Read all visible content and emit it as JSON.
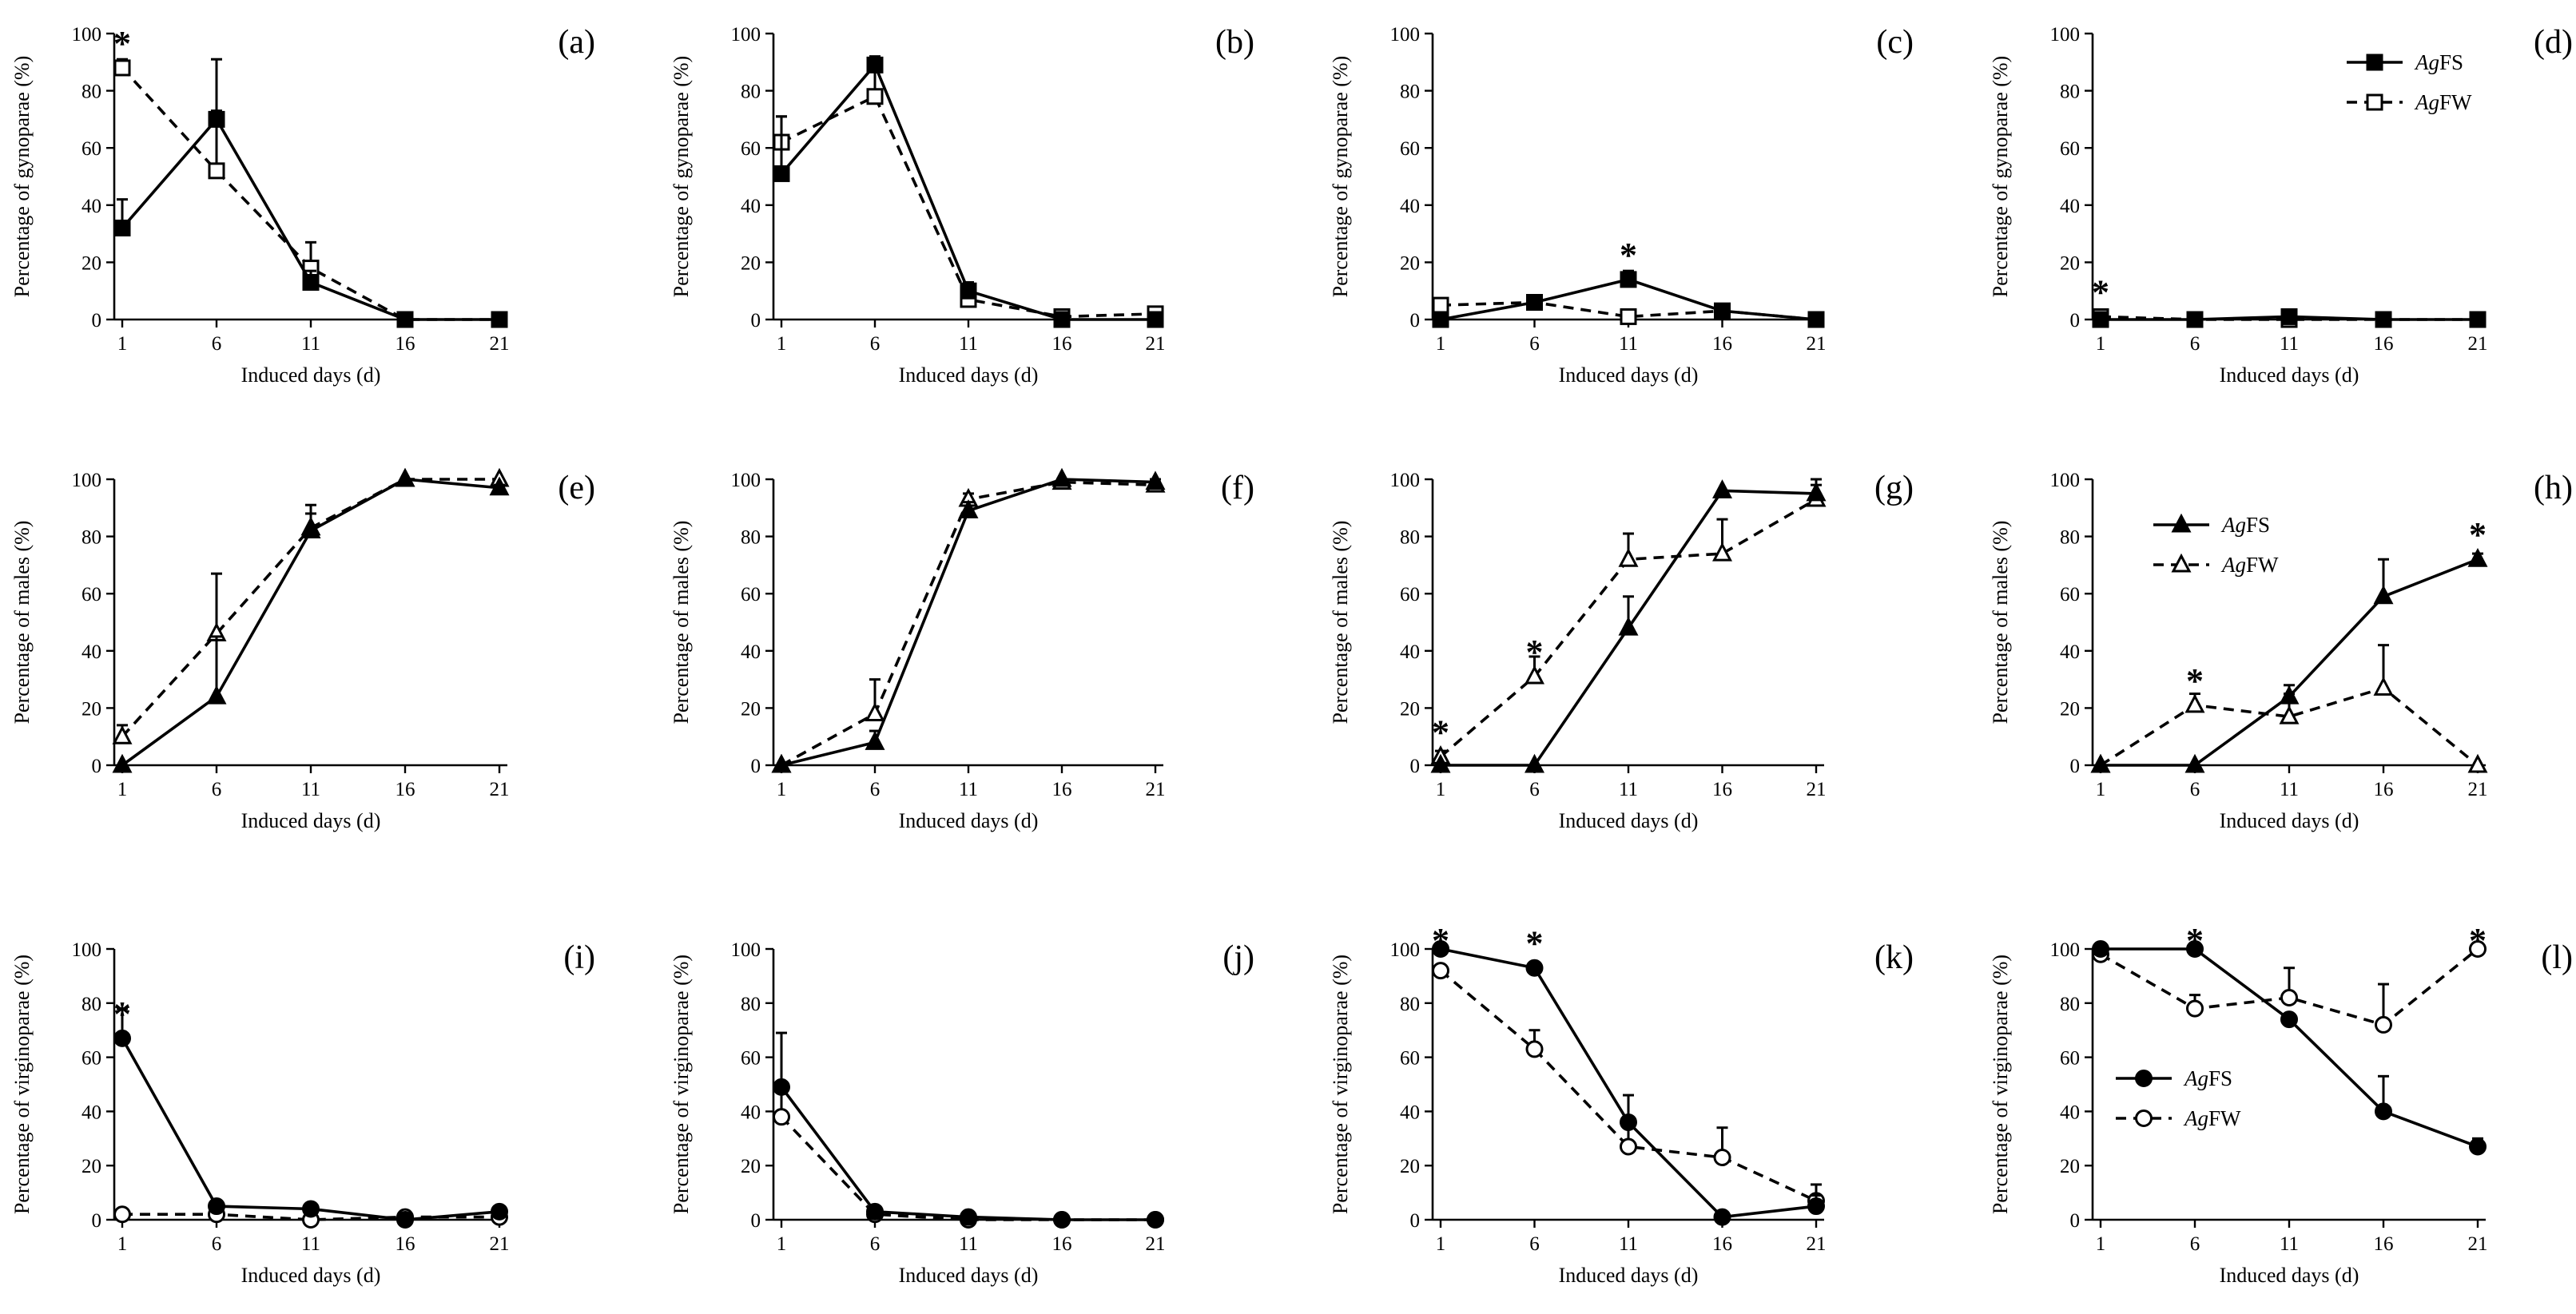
{
  "chart_data": [
    {
      "panel": "(a)",
      "type": "line",
      "ylabel": "Percentage of gynoparae (%)",
      "xlabel": "Induced days (d)",
      "ylim": [
        0,
        100
      ],
      "x": [
        1,
        6,
        11,
        16,
        21
      ],
      "marker": "square",
      "series": [
        {
          "name": "AgFS",
          "style": "solid",
          "values": [
            32,
            70,
            13,
            0,
            0
          ],
          "errors": [
            10,
            21,
            4,
            0,
            0
          ]
        },
        {
          "name": "AgFW",
          "style": "dashed",
          "values": [
            88,
            52,
            18,
            0,
            0
          ],
          "errors": [
            3,
            21,
            9,
            0,
            0
          ]
        }
      ],
      "annotations": [
        {
          "x": 1,
          "y": 88,
          "text": "*"
        }
      ]
    },
    {
      "panel": "(b)",
      "type": "line",
      "ylabel": "Percentage of gynoparae (%)",
      "xlabel": "Induced days (d)",
      "ylim": [
        0,
        100
      ],
      "x": [
        1,
        6,
        11,
        16,
        21
      ],
      "marker": "square",
      "series": [
        {
          "name": "AgFS",
          "style": "solid",
          "values": [
            51,
            89,
            10,
            0,
            0
          ],
          "errors": [
            20,
            3,
            3,
            0,
            0
          ]
        },
        {
          "name": "AgFW",
          "style": "dashed",
          "values": [
            62,
            78,
            7,
            1,
            2
          ],
          "errors": [
            9,
            13,
            2,
            0,
            2
          ]
        }
      ],
      "annotations": []
    },
    {
      "panel": "(c)",
      "type": "line",
      "ylabel": "Percentage of gynoparae (%)",
      "xlabel": "Induced days (d)",
      "ylim": [
        0,
        100
      ],
      "x": [
        1,
        6,
        11,
        16,
        21
      ],
      "marker": "square",
      "series": [
        {
          "name": "AgFS",
          "style": "solid",
          "values": [
            0,
            6,
            14,
            3,
            0
          ],
          "errors": [
            1,
            2,
            3,
            1,
            0
          ]
        },
        {
          "name": "AgFW",
          "style": "dashed",
          "values": [
            5,
            6,
            1,
            3,
            0
          ],
          "errors": [
            2,
            2,
            1,
            1,
            0
          ]
        }
      ],
      "annotations": [
        {
          "x": 11,
          "y": 14,
          "text": "*"
        }
      ]
    },
    {
      "panel": "(d)",
      "type": "line",
      "ylabel": "Percentage of gynoparae (%)",
      "xlabel": "Induced days (d)",
      "ylim": [
        0,
        100
      ],
      "x": [
        1,
        6,
        11,
        16,
        21
      ],
      "marker": "square",
      "series": [
        {
          "name": "AgFS",
          "style": "solid",
          "values": [
            0,
            0,
            1,
            0,
            0
          ],
          "errors": [
            0,
            0,
            1,
            0,
            0
          ]
        },
        {
          "name": "AgFW",
          "style": "dashed",
          "values": [
            1,
            0,
            0,
            0,
            0
          ],
          "errors": [
            1,
            0,
            0,
            0,
            0
          ]
        }
      ],
      "annotations": [
        {
          "x": 1,
          "y": 1,
          "text": "*"
        }
      ],
      "legend": {
        "placement": "top-right",
        "entries": [
          {
            "italic": "Ag",
            "rest": "FS",
            "style": "solid"
          },
          {
            "italic": "Ag",
            "rest": "FW",
            "style": "dashed"
          }
        ]
      }
    },
    {
      "panel": "(e)",
      "type": "line",
      "ylabel": "Percentage of males (%)",
      "xlabel": "Induced days (d)",
      "ylim": [
        0,
        100
      ],
      "x": [
        1,
        6,
        11,
        16,
        21
      ],
      "marker": "triangle",
      "series": [
        {
          "name": "AgFS",
          "style": "solid",
          "values": [
            0,
            24,
            82,
            100,
            97
          ],
          "errors": [
            0,
            21,
            9,
            0,
            1
          ]
        },
        {
          "name": "AgFW",
          "style": "dashed",
          "values": [
            10,
            46,
            83,
            100,
            100
          ],
          "errors": [
            4,
            21,
            5,
            0,
            0
          ]
        }
      ],
      "annotations": []
    },
    {
      "panel": "(f)",
      "type": "line",
      "ylabel": "Percentage of males (%)",
      "xlabel": "Induced days (d)",
      "ylim": [
        0,
        100
      ],
      "x": [
        1,
        6,
        11,
        16,
        21
      ],
      "marker": "triangle",
      "series": [
        {
          "name": "AgFS",
          "style": "solid",
          "values": [
            0,
            8,
            89,
            100,
            99
          ],
          "errors": [
            0,
            4,
            3,
            0,
            1
          ]
        },
        {
          "name": "AgFW",
          "style": "dashed",
          "values": [
            0,
            18,
            93,
            99,
            98
          ],
          "errors": [
            0,
            12,
            2,
            1,
            1
          ]
        }
      ],
      "annotations": []
    },
    {
      "panel": "(g)",
      "type": "line",
      "ylabel": "Percentage of males (%)",
      "xlabel": "Induced days (d)",
      "ylim": [
        0,
        100
      ],
      "x": [
        1,
        6,
        11,
        16,
        21
      ],
      "marker": "triangle",
      "series": [
        {
          "name": "AgFS",
          "style": "solid",
          "values": [
            0,
            0,
            48,
            96,
            95
          ],
          "errors": [
            0,
            0,
            11,
            0,
            5
          ]
        },
        {
          "name": "AgFW",
          "style": "dashed",
          "values": [
            3,
            31,
            72,
            74,
            93
          ],
          "errors": [
            2,
            7,
            9,
            12,
            5
          ]
        }
      ],
      "annotations": [
        {
          "x": 1,
          "y": 3,
          "text": "*"
        },
        {
          "x": 6,
          "y": 31,
          "text": "*"
        }
      ]
    },
    {
      "panel": "(h)",
      "type": "line",
      "ylabel": "Percentage of males (%)",
      "xlabel": "Induced days (d)",
      "ylim": [
        0,
        100
      ],
      "x": [
        1,
        6,
        11,
        16,
        21
      ],
      "marker": "triangle",
      "series": [
        {
          "name": "AgFS",
          "style": "solid",
          "values": [
            0,
            0,
            24,
            59,
            72
          ],
          "errors": [
            0,
            0,
            4,
            13,
            2
          ]
        },
        {
          "name": "AgFW",
          "style": "dashed",
          "values": [
            0,
            21,
            17,
            27,
            0
          ],
          "errors": [
            0,
            4,
            8,
            15,
            0
          ]
        }
      ],
      "annotations": [
        {
          "x": 6,
          "y": 21,
          "text": "*"
        },
        {
          "x": 21,
          "y": 72,
          "text": "*"
        }
      ],
      "legend": {
        "placement": "upper-left",
        "entries": [
          {
            "italic": "Ag",
            "rest": "FS",
            "style": "solid"
          },
          {
            "italic": "Ag",
            "rest": "FW",
            "style": "dashed"
          }
        ]
      }
    },
    {
      "panel": "(i)",
      "type": "line",
      "ylabel": "Percentage of virginoparae (%)",
      "xlabel": "Induced days (d)",
      "ylim": [
        0,
        100
      ],
      "x": [
        1,
        6,
        11,
        16,
        21
      ],
      "marker": "circle",
      "series": [
        {
          "name": "AgFS",
          "style": "solid",
          "values": [
            67,
            5,
            4,
            0,
            3
          ],
          "errors": [
            11,
            2,
            1,
            1,
            1
          ]
        },
        {
          "name": "AgFW",
          "style": "dashed",
          "values": [
            2,
            2,
            0,
            1,
            1
          ],
          "errors": [
            1,
            1,
            0,
            0,
            0
          ]
        }
      ],
      "annotations": [
        {
          "x": 1,
          "y": 67,
          "text": "*"
        }
      ]
    },
    {
      "panel": "(j)",
      "type": "line",
      "ylabel": "Percentage of virginoparae (%)",
      "xlabel": "Induced days (d)",
      "ylim": [
        0,
        100
      ],
      "x": [
        1,
        6,
        11,
        16,
        21
      ],
      "marker": "circle",
      "series": [
        {
          "name": "AgFS",
          "style": "solid",
          "values": [
            49,
            3,
            1,
            0,
            0
          ],
          "errors": [
            20,
            1,
            1,
            0,
            0
          ]
        },
        {
          "name": "AgFW",
          "style": "dashed",
          "values": [
            38,
            2,
            0,
            0,
            0
          ],
          "errors": [
            9,
            1,
            0,
            0,
            0
          ]
        }
      ],
      "annotations": []
    },
    {
      "panel": "(k)",
      "type": "line",
      "ylabel": "Percentage of virginoparae (%)",
      "xlabel": "Induced days (d)",
      "ylim": [
        0,
        100
      ],
      "x": [
        1,
        6,
        11,
        16,
        21
      ],
      "marker": "circle",
      "series": [
        {
          "name": "AgFS",
          "style": "solid",
          "values": [
            100,
            93,
            36,
            1,
            5
          ],
          "errors": [
            0,
            2,
            10,
            0,
            4
          ]
        },
        {
          "name": "AgFW",
          "style": "dashed",
          "values": [
            92,
            63,
            27,
            23,
            7
          ],
          "errors": [
            2,
            7,
            7,
            11,
            6
          ]
        }
      ],
      "annotations": [
        {
          "x": 1,
          "y": 100,
          "text": "*"
        },
        {
          "x": 6,
          "y": 93,
          "text": "*"
        }
      ]
    },
    {
      "panel": "(l)",
      "type": "line",
      "ylabel": "Percentage of virginoparae (%)",
      "xlabel": "Induced days (d)",
      "ylim": [
        0,
        100
      ],
      "x": [
        1,
        6,
        11,
        16,
        21
      ],
      "marker": "circle",
      "series": [
        {
          "name": "AgFS",
          "style": "solid",
          "values": [
            100,
            100,
            74,
            40,
            27
          ],
          "errors": [
            0,
            0,
            2,
            13,
            3
          ]
        },
        {
          "name": "AgFW",
          "style": "dashed",
          "values": [
            98,
            78,
            82,
            72,
            100
          ],
          "errors": [
            1,
            5,
            11,
            15,
            0
          ]
        }
      ],
      "annotations": [
        {
          "x": 6,
          "y": 100,
          "text": "*"
        },
        {
          "x": 21,
          "y": 100,
          "text": "*"
        }
      ],
      "legend": {
        "placement": "lower-left",
        "entries": [
          {
            "italic": "Ag",
            "rest": "FS",
            "style": "solid"
          },
          {
            "italic": "Ag",
            "rest": "FW",
            "style": "dashed"
          }
        ]
      }
    }
  ]
}
